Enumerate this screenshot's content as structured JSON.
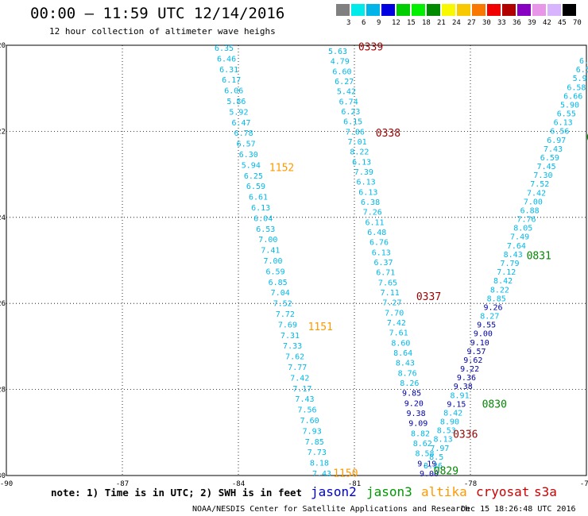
{
  "header": {
    "title": "00:00 – 11:59 UTC 12/14/2016",
    "subtitle": "12 hour collection of altimeter wave heighs"
  },
  "colorbar": {
    "colors": [
      "#808080",
      "#00eaea",
      "#00b4e8",
      "#0000e0",
      "#00ce00",
      "#00f000",
      "#008a00",
      "#f8f800",
      "#f8c800",
      "#f87800",
      "#f00000",
      "#b00000",
      "#8800c0",
      "#e896e8",
      "#d8b4ff",
      "#000000"
    ],
    "labels": [
      "3",
      "6",
      "9",
      "12",
      "15",
      "18",
      "21",
      "24",
      "27",
      "30",
      "33",
      "36",
      "39",
      "42",
      "45",
      "70",
      "(ft)"
    ]
  },
  "map": {
    "lon_range": [
      -90,
      -75
    ],
    "lat_range": [
      -30,
      -20
    ],
    "x_tick_labels": [
      "-90",
      "-87",
      "-84",
      "-81",
      "-78",
      "-75"
    ],
    "y_tick_labels": [
      "-20",
      "-22",
      "-24",
      "-26",
      "-28",
      "-30"
    ],
    "colors": {
      "jason2": "#0000aa",
      "jason3": "#008800",
      "altika": "#ff9900",
      "cryosat": "#990000",
      "s3a": "#ff0000",
      "swh_low": "#00b8e8"
    }
  },
  "tracks": [
    {
      "satellite": "altika",
      "pass_label": "1152",
      "values": [
        "6.35",
        "6.46",
        "6.31",
        "6.17",
        "6.06",
        "5.86",
        "5.92",
        "6.47",
        "6.78",
        "6.57",
        "6.30",
        "5.94",
        "6.25",
        "6.59",
        "6.61",
        "6.13",
        "6.04",
        "6.53",
        "7.00",
        "7.41",
        "7.00",
        "6.59",
        "6.85",
        "7.04",
        "7.52",
        "7.72",
        "7.69",
        "7.31",
        "7.33",
        "7.62",
        "7.77",
        "7.42",
        "7.17",
        "7.43",
        "7.56",
        "7.60",
        "7.93",
        "7.85",
        "7.73",
        "8.18",
        "7.43"
      ]
    },
    {
      "satellite": "altika",
      "pass_label": "1151",
      "values": []
    },
    {
      "satellite": "altika",
      "pass_label": "1150",
      "values": []
    },
    {
      "satellite": "cryosat",
      "pass_label": "0339",
      "values": [
        "5.63",
        "4.79",
        "6.60",
        "6.27",
        "5.42",
        "6.74",
        "6.23",
        "6.15",
        "7.06",
        "7.01",
        "8.22",
        "6.13",
        "7.39",
        "6.13",
        "6.13",
        "6.38",
        "7.26",
        "6.11",
        "6.48",
        "6.76",
        "6.13",
        "6.37",
        "6.71",
        "7.65",
        "7.11",
        "7.27",
        "7.70",
        "7.42",
        "7.61",
        "8.60",
        "8.64",
        "8.43",
        "8.76",
        "8.26",
        "9.85",
        "9.20",
        "9.38",
        "9.09",
        "8.82",
        "8.62",
        "8.58",
        "9.19",
        "9.00"
      ]
    },
    {
      "satellite": "cryosat",
      "pass_label": "0338",
      "values": []
    },
    {
      "satellite": "cryosat",
      "pass_label": "0337",
      "values": []
    },
    {
      "satellite": "cryosat",
      "pass_label": "0336",
      "values": []
    },
    {
      "satellite": "jason3",
      "pass_label": "0831",
      "values": [
        "6.1",
        "6.5",
        "5.9",
        "6.58",
        "6.66",
        "5.90",
        "6.55",
        "6.13",
        "6.56",
        "6.97",
        "7.43",
        "6.59",
        "7.45",
        "7.30",
        "7.52",
        "7.42",
        "7.00",
        "6.88",
        "7.76",
        "8.05",
        "7.49",
        "7.64",
        "8.43",
        "7.79",
        "7.12",
        "8.42",
        "8.22",
        "8.85",
        "9.26",
        "8.27",
        "9.55",
        "9.00",
        "9.10",
        "9.57",
        "9.62",
        "9.22",
        "9.36",
        "9.38",
        "8.91",
        "9.15",
        "8.42",
        "8.90",
        "8.53",
        "8.13",
        "7.97",
        "8.5",
        "8.26"
      ]
    },
    {
      "satellite": "jason3",
      "pass_label": "0830",
      "values": []
    },
    {
      "satellite": "jason3",
      "pass_label": "0829",
      "values": []
    },
    {
      "satellite": "jason3",
      "pass_label": "0",
      "values": []
    }
  ],
  "footer": {
    "note": "note: 1) Time is in UTC; 2) SWH is in feet",
    "legend": [
      "jason2",
      "jason3",
      "altika",
      "cryosat",
      "s3a"
    ],
    "credit": "NOAA/NESDIS Center for Satellite Applications and Research",
    "date": "Dec 15 18:26:48 UTC 2016"
  }
}
